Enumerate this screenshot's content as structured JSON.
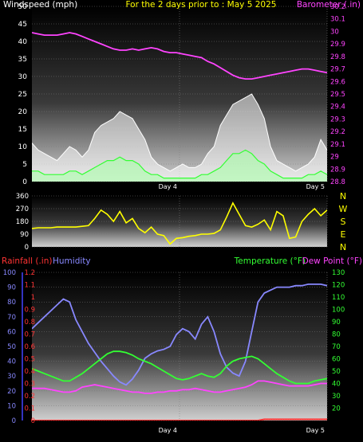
{
  "chart_data": [
    {
      "type": "line",
      "title": "For the 2 days prior to : May 5 2025",
      "left_axis": {
        "label": "Windspeed (mph)",
        "range": [
          0,
          50
        ],
        "ticks": [
          0,
          5,
          10,
          15,
          20,
          25,
          30,
          35,
          40,
          45,
          50
        ],
        "color": "#ffffff"
      },
      "right_axis": {
        "label": "Barometer (.in)",
        "range": [
          28.8,
          30.2
        ],
        "ticks": [
          "28.8",
          "28.9",
          "29",
          "29.1",
          "29.2",
          "29.3",
          "29.4",
          "29.5",
          "29.6",
          "29.7",
          "29.8",
          "29.9",
          "30",
          "30.1",
          "30.2"
        ],
        "color": "#ff44ff"
      },
      "x_labels": [
        "Day 4",
        "Day 5"
      ],
      "x_range": [
        0,
        48
      ],
      "series": [
        {
          "name": "Gust",
          "color": "#ffffff",
          "values": [
            11,
            9,
            8,
            7,
            6,
            8,
            10,
            9,
            7,
            9,
            14,
            16,
            17,
            18,
            20,
            19,
            18,
            15,
            12,
            7,
            5,
            4,
            3,
            4,
            5,
            4,
            4,
            5,
            8,
            10,
            16,
            19,
            22,
            23,
            24,
            25,
            22,
            18,
            10,
            6,
            5,
            4,
            3,
            4,
            5,
            7,
            12,
            9
          ]
        },
        {
          "name": "Windspeed",
          "color": "#33ff33",
          "values": [
            3,
            3,
            2,
            2,
            2,
            2,
            3,
            3,
            2,
            3,
            4,
            5,
            6,
            6,
            7,
            6,
            6,
            5,
            3,
            2,
            2,
            1,
            1,
            1,
            1,
            1,
            1,
            2,
            2,
            3,
            4,
            6,
            8,
            8,
            9,
            8,
            6,
            5,
            3,
            2,
            1,
            1,
            1,
            1,
            2,
            2,
            3,
            2
          ]
        },
        {
          "name": "Barometer",
          "color": "#ff44ff",
          "values": [
            29.99,
            29.98,
            29.97,
            29.97,
            29.97,
            29.98,
            29.99,
            29.98,
            29.96,
            29.94,
            29.92,
            29.9,
            29.88,
            29.86,
            29.85,
            29.85,
            29.86,
            29.85,
            29.86,
            29.87,
            29.86,
            29.84,
            29.83,
            29.83,
            29.82,
            29.81,
            29.8,
            29.79,
            29.76,
            29.74,
            29.71,
            29.68,
            29.65,
            29.63,
            29.62,
            29.62,
            29.63,
            29.64,
            29.65,
            29.66,
            29.67,
            29.68,
            29.69,
            29.7,
            29.7,
            29.69,
            29.68,
            29.67
          ]
        }
      ]
    },
    {
      "type": "line",
      "title": "",
      "left_axis": {
        "range": [
          0,
          360
        ],
        "ticks": [
          0,
          90,
          180,
          270,
          360
        ],
        "color": "#ffffff"
      },
      "right_labels": [
        "N",
        "W",
        "S",
        "E",
        "N"
      ],
      "x_range": [
        0,
        48
      ],
      "series": [
        {
          "name": "Wind direction",
          "color": "#ffff00",
          "values": [
            130,
            135,
            135,
            135,
            140,
            140,
            140,
            140,
            145,
            150,
            200,
            260,
            230,
            180,
            250,
            170,
            200,
            130,
            100,
            140,
            90,
            80,
            20,
            60,
            65,
            75,
            80,
            90,
            90,
            95,
            120,
            210,
            310,
            230,
            150,
            140,
            160,
            190,
            120,
            250,
            220,
            60,
            70,
            180,
            230,
            270,
            220,
            260
          ]
        }
      ]
    },
    {
      "type": "line",
      "title": "",
      "left_axes": [
        {
          "label": "Rainfall (.in)",
          "range": [
            0,
            1.2
          ],
          "ticks": [
            "0",
            "0.1",
            "0.2",
            "0.3",
            "0.4",
            "0.5",
            "0.6",
            "0.7",
            "0.8",
            "0.9",
            "1",
            "1.1",
            "1.2"
          ],
          "color": "#ff3333"
        },
        {
          "label": "Humidity",
          "range": [
            0,
            100
          ],
          "ticks": [
            0,
            10,
            20,
            30,
            40,
            50,
            60,
            70,
            80,
            90,
            100
          ],
          "color": "#8888ff"
        }
      ],
      "right_axis": {
        "label": "Temperature (°F)",
        "label2": "Dew Point (°F)",
        "range": [
          10,
          130
        ],
        "ticks": [
          20,
          30,
          40,
          50,
          60,
          70,
          80,
          90,
          100,
          110,
          120,
          130
        ],
        "color": "#33ff33",
        "color2": "#ff44ff"
      },
      "x_labels": [
        "Day 4",
        "Day 5"
      ],
      "x_range": [
        0,
        48
      ],
      "series": [
        {
          "name": "Humidity",
          "color": "#8888ff",
          "values": [
            62,
            66,
            70,
            74,
            78,
            82,
            80,
            68,
            60,
            52,
            46,
            40,
            35,
            30,
            26,
            24,
            28,
            34,
            42,
            45,
            47,
            48,
            50,
            58,
            62,
            60,
            55,
            65,
            70,
            60,
            45,
            36,
            32,
            30,
            40,
            60,
            80,
            86,
            88,
            90,
            90,
            90,
            91,
            91,
            92,
            92,
            92,
            91
          ]
        },
        {
          "name": "Temperature",
          "color": "#33ff33",
          "values": [
            52,
            50,
            48,
            46,
            44,
            42,
            42,
            45,
            48,
            52,
            56,
            60,
            64,
            66,
            66,
            65,
            63,
            60,
            58,
            56,
            53,
            50,
            47,
            44,
            43,
            44,
            46,
            48,
            46,
            45,
            48,
            54,
            58,
            60,
            61,
            62,
            60,
            56,
            52,
            48,
            45,
            42,
            40,
            40,
            40,
            42,
            43,
            44
          ]
        },
        {
          "name": "Dew Point",
          "color": "#ff44ff",
          "values": [
            36,
            36,
            36,
            35,
            34,
            33,
            33,
            34,
            37,
            38,
            39,
            38,
            37,
            36,
            35,
            34,
            33,
            33,
            32,
            32,
            33,
            33,
            34,
            34,
            35,
            35,
            36,
            35,
            34,
            33,
            33,
            34,
            35,
            36,
            37,
            39,
            42,
            42,
            41,
            40,
            39,
            38,
            38,
            38,
            38,
            39,
            40,
            40
          ]
        },
        {
          "name": "Rainfall",
          "color": "#ff3333",
          "values": [
            0,
            0,
            0,
            0,
            0,
            0,
            0,
            0,
            0,
            0,
            0,
            0,
            0,
            0,
            0,
            0,
            0,
            0,
            0,
            0,
            0,
            0,
            0,
            0,
            0,
            0,
            0,
            0,
            0,
            0,
            0,
            0,
            0,
            0,
            0,
            0,
            0,
            0.01,
            0.01,
            0.01,
            0.01,
            0.01,
            0.01,
            0.01,
            0.01,
            0.01,
            0.01,
            0.01
          ]
        }
      ]
    }
  ]
}
